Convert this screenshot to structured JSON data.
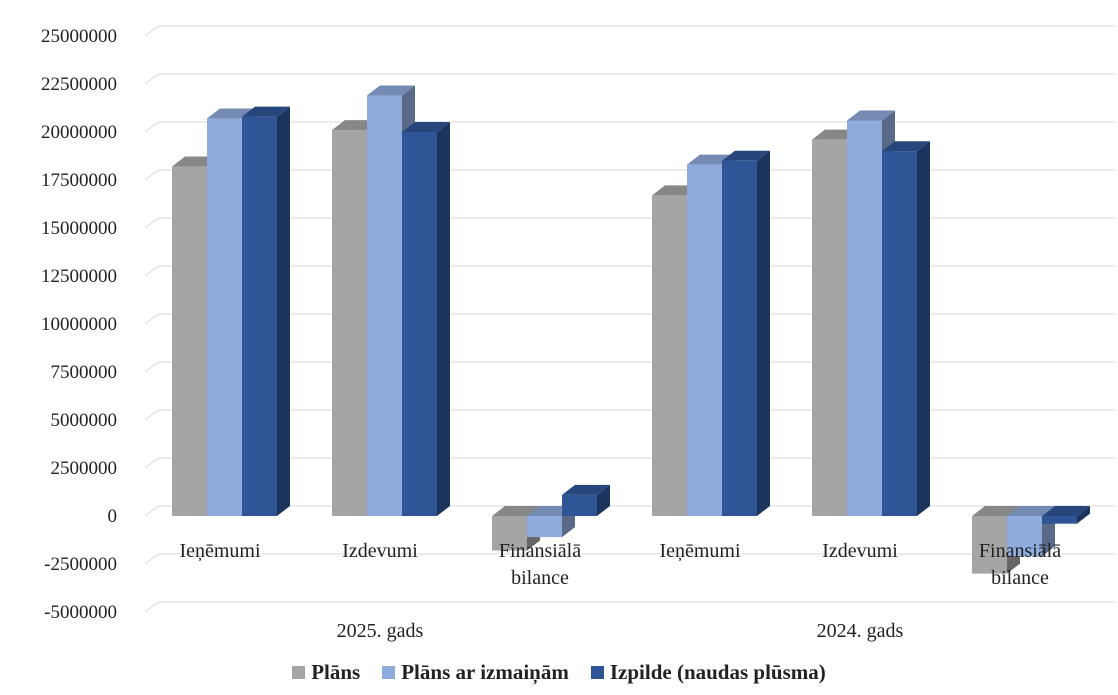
{
  "chart_data": {
    "type": "bar",
    "groups": [
      {
        "label": "2025. gads",
        "categories": [
          "Ieņēmumi",
          "Izdevumi",
          "Finansiālā bilance"
        ]
      },
      {
        "label": "2024. gads",
        "categories": [
          "Ieņēmumi",
          "Izdevumi",
          "Finansiālā bilance"
        ]
      }
    ],
    "categories": [
      "Ieņēmumi",
      "Izdevumi",
      "Finansiālā bilance",
      "Ieņēmumi",
      "Izdevumi",
      "Finansiālā bilance"
    ],
    "series": [
      {
        "name": "Plāns",
        "color": "#a5a5a5",
        "values": [
          18200000,
          20100000,
          -1800000,
          16700000,
          19600000,
          -3000000
        ]
      },
      {
        "name": "Plāns ar izmaiņām",
        "color": "#8faadc",
        "values": [
          20700000,
          21900000,
          -1100000,
          18300000,
          20600000,
          -2100000
        ]
      },
      {
        "name": "Izpilde (naudas plūsma)",
        "color": "#2f5597",
        "values": [
          20800000,
          20000000,
          1100000,
          18500000,
          19000000,
          -400000
        ]
      }
    ],
    "yticks": [
      25000000,
      22500000,
      20000000,
      17500000,
      15000000,
      12500000,
      10000000,
      7500000,
      5000000,
      2500000,
      0,
      -2500000,
      -5000000
    ],
    "ylim": [
      -5000000,
      25000000
    ],
    "grid": true,
    "legend_position": "bottom",
    "title": "",
    "xlabel": "",
    "ylabel": ""
  }
}
